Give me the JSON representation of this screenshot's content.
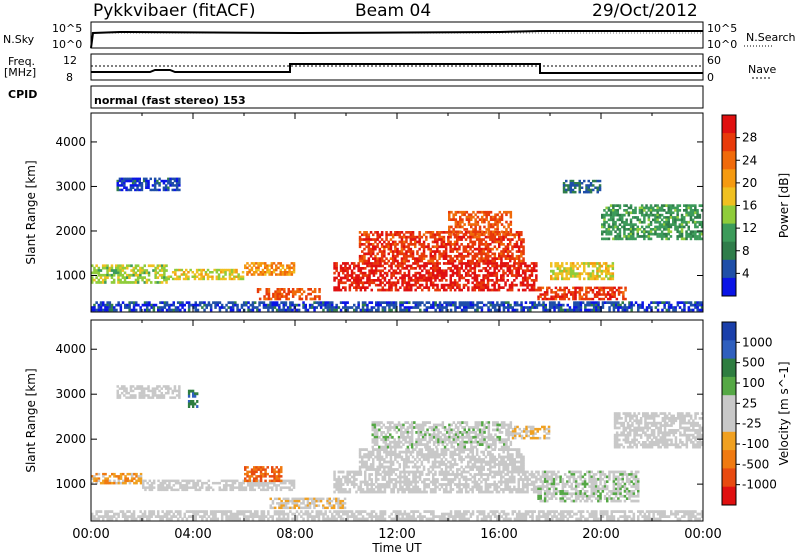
{
  "header": {
    "title": "Pykkvibaer (fitACF)",
    "beam": "Beam 04",
    "date": "29/Oct/2012"
  },
  "top_panel": {
    "nsky_label": "N.Sky",
    "nsky_ticks": [
      "10^5",
      "10^0"
    ],
    "nsearch_ticks": [
      "10^5",
      "10^0"
    ],
    "nsearch_label": "N.Search",
    "freq_label_line1": "Freq.",
    "freq_label_line2": "[MHz]",
    "freq_ticks": [
      "12",
      "8"
    ],
    "nave_ticks": [
      "60",
      "0"
    ],
    "nave_label": "Nave",
    "cpid_label": "CPID",
    "cpid_text": "normal (fast stereo) 153"
  },
  "colors": {
    "power": [
      "#0a14e6",
      "#1f4fa8",
      "#2f7d4a",
      "#3c9b5a",
      "#8fcc3a",
      "#f0c020",
      "#f59a10",
      "#f06a0a",
      "#e83a0a",
      "#e01010"
    ],
    "velocity": [
      "#1a3faa",
      "#2f5fbe",
      "#2e7d40",
      "#55a845",
      "#c8c8c8",
      "#c8c8c8",
      "#f0a020",
      "#f07a10",
      "#e84a10",
      "#e01010"
    ]
  },
  "chart_data": [
    {
      "type": "heatmap",
      "title": "",
      "xlabel": "Time UT",
      "ylabel": "Slant Range [km]",
      "x_ticks": [
        "00:00",
        "04:00",
        "08:00",
        "12:00",
        "16:00",
        "20:00",
        "00:00"
      ],
      "y_ticks": [
        "1000",
        "2000",
        "3000",
        "4000"
      ],
      "xlim": [
        0,
        24
      ],
      "ylim": [
        180,
        4650
      ],
      "colorbar": {
        "label": "Power [dB]",
        "ticks": [
          "4",
          "8",
          "12",
          "16",
          "20",
          "24",
          "28"
        ],
        "range": [
          0,
          30
        ]
      },
      "regions": [
        {
          "t0": 0.0,
          "t1": 3.0,
          "r0": 820,
          "r1": 1250,
          "val": 14
        },
        {
          "t0": 3.0,
          "t1": 6.0,
          "r0": 900,
          "r1": 1150,
          "val": 16
        },
        {
          "t0": 6.0,
          "t1": 8.0,
          "r0": 1000,
          "r1": 1300,
          "val": 20
        },
        {
          "t0": 6.5,
          "t1": 9.0,
          "r0": 450,
          "r1": 720,
          "val": 24
        },
        {
          "t0": 9.5,
          "t1": 17.5,
          "r0": 650,
          "r1": 1300,
          "val": 28
        },
        {
          "t0": 10.5,
          "t1": 17.0,
          "r0": 1300,
          "r1": 2000,
          "val": 26
        },
        {
          "t0": 14.0,
          "t1": 16.5,
          "r0": 1900,
          "r1": 2450,
          "val": 24
        },
        {
          "t0": 18.0,
          "t1": 20.5,
          "r0": 900,
          "r1": 1300,
          "val": 16
        },
        {
          "t0": 17.5,
          "t1": 21.0,
          "r0": 450,
          "r1": 750,
          "val": 26
        },
        {
          "t0": 20.0,
          "t1": 24.0,
          "r0": 1800,
          "r1": 2600,
          "val": 10
        },
        {
          "t0": 0.0,
          "t1": 24.0,
          "r0": 200,
          "r1": 420,
          "val": 4
        },
        {
          "t0": 1.0,
          "t1": 3.5,
          "r0": 2900,
          "r1": 3200,
          "val": 4
        },
        {
          "t0": 18.5,
          "t1": 20.0,
          "r0": 2850,
          "r1": 3150,
          "val": 6
        }
      ]
    },
    {
      "type": "heatmap",
      "title": "",
      "xlabel": "Time UT",
      "ylabel": "Slant Range [km]",
      "x_ticks": [
        "00:00",
        "04:00",
        "08:00",
        "12:00",
        "16:00",
        "20:00",
        "00:00"
      ],
      "y_ticks": [
        "1000",
        "2000",
        "3000",
        "4000"
      ],
      "xlim": [
        0,
        24
      ],
      "ylim": [
        180,
        4650
      ],
      "colorbar": {
        "label": "Velocity [m s^-1]",
        "ticks": [
          "1000",
          "500",
          "100",
          "25",
          "-25",
          "-100",
          "-500",
          "-1000"
        ],
        "range": [
          -1000,
          1000
        ]
      },
      "regions": [
        {
          "t0": 0.0,
          "t1": 2.0,
          "r0": 1000,
          "r1": 1250,
          "val": -300
        },
        {
          "t0": 2.0,
          "t1": 8.0,
          "r0": 850,
          "r1": 1100,
          "val": 0
        },
        {
          "t0": 6.0,
          "t1": 7.5,
          "r0": 1050,
          "r1": 1400,
          "val": -600
        },
        {
          "t0": 7.0,
          "t1": 10.0,
          "r0": 450,
          "r1": 700,
          "val": -150
        },
        {
          "t0": 9.5,
          "t1": 17.5,
          "r0": 800,
          "r1": 1300,
          "val": 0
        },
        {
          "t0": 10.5,
          "t1": 17.0,
          "r0": 1300,
          "r1": 1800,
          "val": 0
        },
        {
          "t0": 11.0,
          "t1": 16.5,
          "r0": 1800,
          "r1": 2400,
          "val": 80
        },
        {
          "t0": 16.5,
          "t1": 18.0,
          "r0": 2000,
          "r1": 2300,
          "val": -200
        },
        {
          "t0": 17.5,
          "t1": 21.5,
          "r0": 600,
          "r1": 1300,
          "val": 120
        },
        {
          "t0": 20.5,
          "t1": 24.0,
          "r0": 1800,
          "r1": 2600,
          "val": 0
        },
        {
          "t0": 0.0,
          "t1": 24.0,
          "r0": 200,
          "r1": 420,
          "val": 0
        },
        {
          "t0": 1.0,
          "t1": 3.5,
          "r0": 2900,
          "r1": 3200,
          "val": 0
        },
        {
          "t0": 3.8,
          "t1": 4.2,
          "r0": 2700,
          "r1": 3100,
          "val": 600
        }
      ]
    }
  ]
}
